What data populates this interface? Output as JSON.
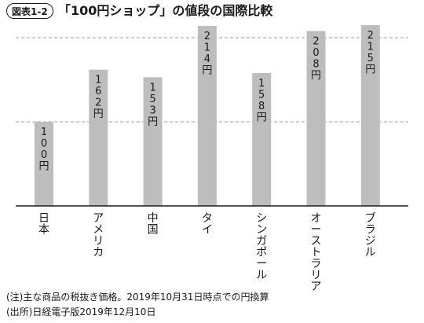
{
  "figure_label": "図表1-2",
  "title": "「100円ショップ」の値段の国際比較",
  "notes": [
    "(注)主な商品の税抜き価格。2019年10月31日時点での円換算",
    "(出所)日経電子版2019年12月10日"
  ],
  "chart_data": {
    "type": "bar",
    "categories": [
      "日本",
      "アメリカ",
      "中国",
      "タイ",
      "シンガポール",
      "オーストラリア",
      "ブラジル"
    ],
    "values": [
      100,
      162,
      153,
      214,
      158,
      208,
      215
    ],
    "data_labels": [
      "100円",
      "162円",
      "153円",
      "214円",
      "158円",
      "208円",
      "215円"
    ],
    "ylim": [
      0,
      220
    ],
    "gridlines": [
      100,
      200
    ],
    "grid": true,
    "bar_color": "#bdbdbd",
    "grid_color": "#9e9e9e"
  }
}
